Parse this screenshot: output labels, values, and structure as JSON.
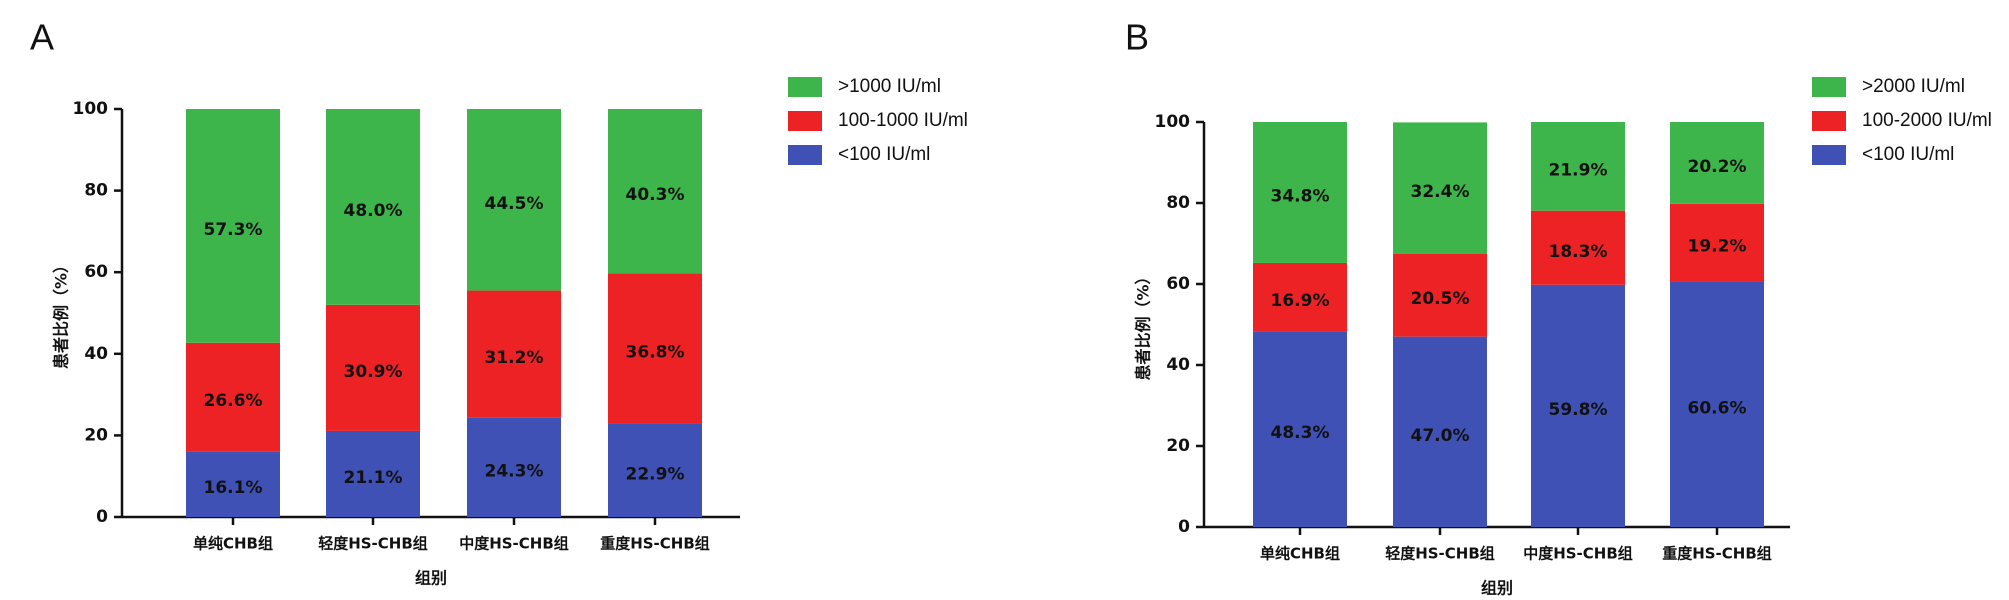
{
  "chart_data": [
    {
      "type": "stacked_bar",
      "label": "A",
      "y_label": "患者比例（%）",
      "x_label": "组别",
      "categories": [
        "单纯CHB组",
        "轻度HS-CHB组",
        "中度HS-CHB组",
        "重度HS-CHB组"
      ],
      "ylim": [
        0,
        100
      ],
      "yticks": [
        0,
        20,
        40,
        60,
        80,
        100
      ],
      "series": [
        {
          "name": "<100 IU/ml",
          "color": "#3f51b5",
          "values": [
            16.1,
            21.1,
            24.3,
            22.9
          ],
          "value_labels": [
            "16.1%",
            "21.1%",
            "24.3%",
            "22.9%"
          ]
        },
        {
          "name": "100-1000 IU/ml",
          "color": "#ed2224",
          "values": [
            26.6,
            30.9,
            31.2,
            36.8
          ],
          "value_labels": [
            "26.6%",
            "30.9%",
            "31.2%",
            "36.8%"
          ]
        },
        {
          "name": ">1000 IU/ml",
          "color": "#3db54a",
          "values": [
            57.3,
            48.0,
            44.5,
            40.3
          ],
          "value_labels": [
            "57.3%",
            "48.0%",
            "44.5%",
            "40.3%"
          ]
        }
      ]
    },
    {
      "type": "stacked_bar",
      "label": "B",
      "y_label": "患者比例（%）",
      "x_label": "组别",
      "categories": [
        "单纯CHB组",
        "轻度HS-CHB组",
        "中度HS-CHB组",
        "重度HS-CHB组"
      ],
      "ylim": [
        0,
        100
      ],
      "yticks": [
        0,
        20,
        40,
        60,
        80,
        100
      ],
      "series": [
        {
          "name": "<100 IU/ml",
          "color": "#3f51b5",
          "values": [
            48.3,
            47.0,
            59.8,
            60.6
          ],
          "value_labels": [
            "48.3%",
            "47.0%",
            "59.8%",
            "60.6%"
          ]
        },
        {
          "name": "100-2000 IU/ml",
          "color": "#ed2224",
          "values": [
            16.9,
            20.5,
            18.3,
            19.2
          ],
          "value_labels": [
            "16.9%",
            "20.5%",
            "18.3%",
            "19.2%"
          ]
        },
        {
          "name": ">2000 IU/ml",
          "color": "#3db54a",
          "values": [
            34.8,
            32.4,
            21.9,
            20.2
          ],
          "value_labels": [
            "34.8%",
            "32.4%",
            "21.9%",
            "20.2%"
          ]
        }
      ]
    }
  ]
}
